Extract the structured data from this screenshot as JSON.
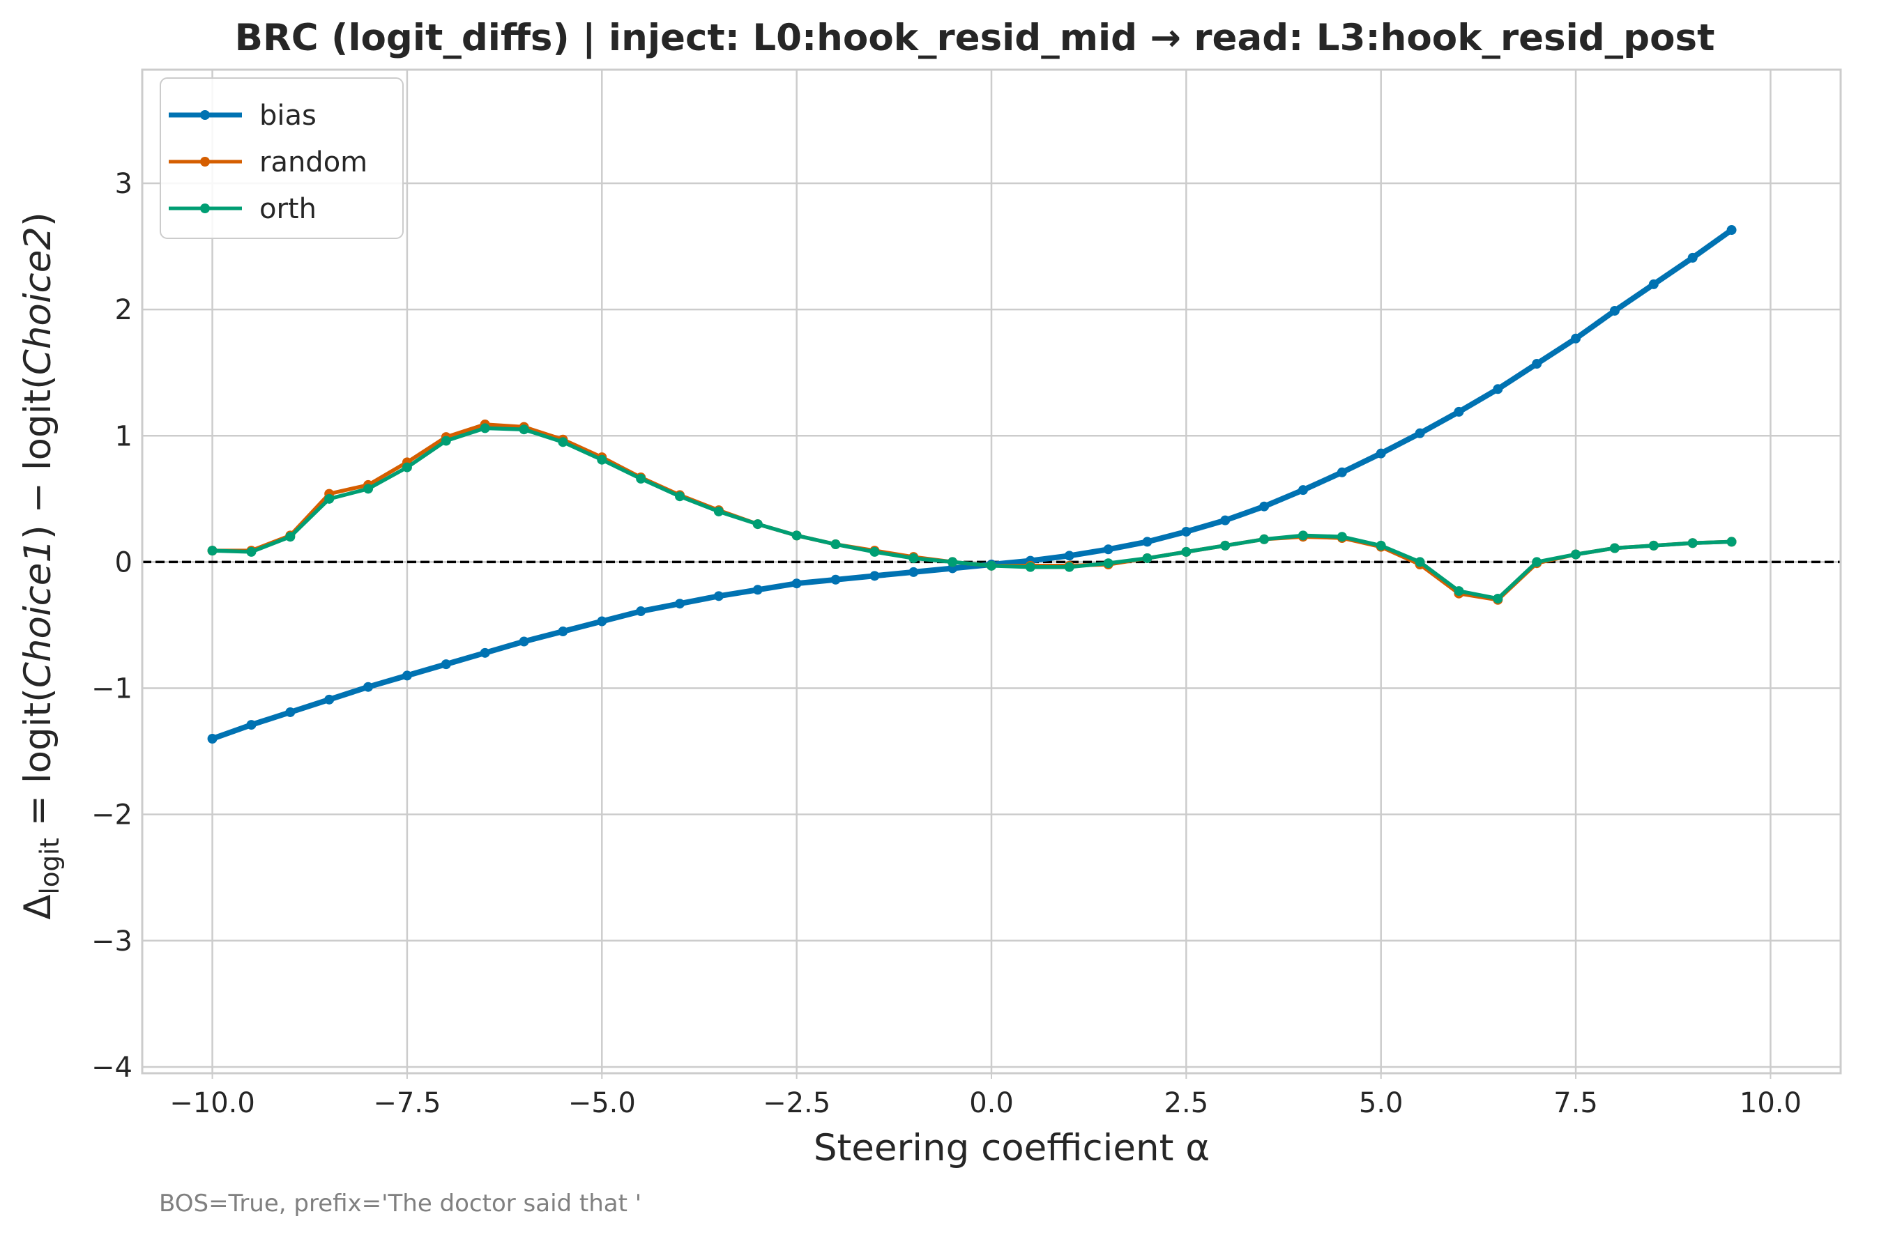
{
  "chart_data": {
    "type": "line",
    "title": "BRC (logit_diffs) | inject: L0:hook_resid_mid → read: L3:hook_resid_post",
    "xlabel": "Steering coefficient α",
    "ylabel": {
      "prefix": "Δ",
      "subscript": "logit",
      "body": " = logit(",
      "term1": "Choice1",
      "mid": ") − logit(",
      "term2": "Choice2",
      "suffix": ")"
    },
    "footnote": "BOS=True, prefix='The doctor said that '",
    "xlim": [
      -10.9,
      10.9
    ],
    "ylim": [
      -4.05,
      3.9
    ],
    "xticks": [
      -10.0,
      -7.5,
      -5.0,
      -2.5,
      0.0,
      2.5,
      5.0,
      7.5,
      10.0
    ],
    "xtick_labels": [
      "−10.0",
      "−7.5",
      "−5.0",
      "−2.5",
      "0.0",
      "2.5",
      "5.0",
      "7.5",
      "10.0"
    ],
    "yticks": [
      -4,
      -3,
      -2,
      -1,
      0,
      1,
      2,
      3
    ],
    "ytick_labels": [
      "−4",
      "−3",
      "−2",
      "−1",
      "0",
      "1",
      "2",
      "3"
    ],
    "grid": true,
    "zero_line": {
      "y": 0,
      "style": "dashed",
      "color": "#000000"
    },
    "legend_position": "upper-left",
    "x": [
      -10.0,
      -9.5,
      -9.0,
      -8.5,
      -8.0,
      -7.5,
      -7.0,
      -6.5,
      -6.0,
      -5.5,
      -5.0,
      -4.5,
      -4.0,
      -3.5,
      -3.0,
      -2.5,
      -2.0,
      -1.5,
      -1.0,
      -0.5,
      0.0,
      0.5,
      1.0,
      1.5,
      2.0,
      2.5,
      3.0,
      3.5,
      4.0,
      4.5,
      5.0,
      5.5,
      6.0,
      6.5,
      7.0,
      7.5,
      8.0,
      8.5,
      9.0,
      9.5
    ],
    "series": [
      {
        "name": "bias",
        "color": "#0072B2",
        "values": [
          -1.4,
          -1.29,
          -1.19,
          -1.09,
          -0.99,
          -0.9,
          -0.81,
          -0.72,
          -0.63,
          -0.55,
          -0.47,
          -0.39,
          -0.33,
          -0.27,
          -0.22,
          -0.17,
          -0.14,
          -0.11,
          -0.08,
          -0.05,
          -0.02,
          0.01,
          0.05,
          0.1,
          0.16,
          0.24,
          0.33,
          0.44,
          0.57,
          0.71,
          0.86,
          1.02,
          1.19,
          1.37,
          1.57,
          1.77,
          1.99,
          2.2,
          2.41,
          2.63
        ]
      },
      {
        "name": "random",
        "color": "#D55E00",
        "values": [
          0.09,
          0.09,
          0.21,
          0.54,
          0.61,
          0.79,
          0.99,
          1.09,
          1.07,
          0.97,
          0.83,
          0.67,
          0.53,
          0.41,
          0.3,
          0.21,
          0.14,
          0.09,
          0.04,
          0.0,
          -0.03,
          -0.03,
          -0.03,
          -0.02,
          0.03,
          0.08,
          0.13,
          0.18,
          0.2,
          0.19,
          0.12,
          -0.02,
          -0.25,
          -0.3,
          -0.01,
          0.06,
          0.11,
          0.13,
          0.15,
          0.16
        ]
      },
      {
        "name": "orth",
        "color": "#009E73",
        "values": [
          0.09,
          0.08,
          0.2,
          0.5,
          0.58,
          0.75,
          0.96,
          1.06,
          1.05,
          0.95,
          0.81,
          0.66,
          0.52,
          0.4,
          0.3,
          0.21,
          0.14,
          0.08,
          0.03,
          0.0,
          -0.03,
          -0.04,
          -0.04,
          -0.01,
          0.03,
          0.08,
          0.13,
          0.18,
          0.21,
          0.2,
          0.13,
          0.0,
          -0.23,
          -0.29,
          0.0,
          0.06,
          0.11,
          0.13,
          0.15,
          0.16
        ]
      }
    ]
  }
}
